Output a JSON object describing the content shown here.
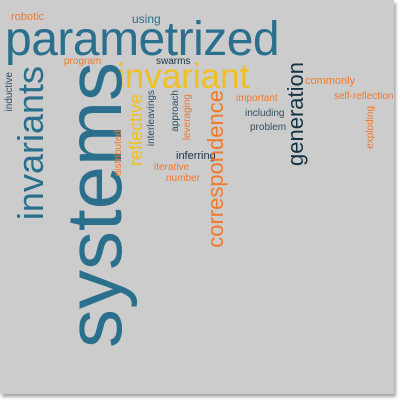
{
  "cloud": {
    "words": {
      "systems": "systems",
      "parametrized": "parametrized",
      "invariant": "invariant",
      "invariants": "invariants",
      "correspondence": "correspondence",
      "generation": "generation",
      "reflective": "reflective",
      "robotic": "robotic",
      "using": "using",
      "program": "program",
      "swarms": "swarms",
      "commonly": "commonly",
      "self_reflection": "self-reflection",
      "important": "important",
      "including": "including",
      "problem": "problem",
      "inductive": "inductive",
      "interleavings": "interleavings",
      "approach": "approach",
      "leveraging": "leveraging",
      "distributed": "distributed",
      "inferring": "inferring",
      "iterative": "iterative",
      "number": "number",
      "exploding": "exploding"
    },
    "colors": {
      "blue": "#2a6f8c",
      "yellow": "#f0c020",
      "orange": "#ef7a2c",
      "slate": "#2f4f63",
      "dark": "#163344",
      "background": "#cccccc"
    }
  }
}
